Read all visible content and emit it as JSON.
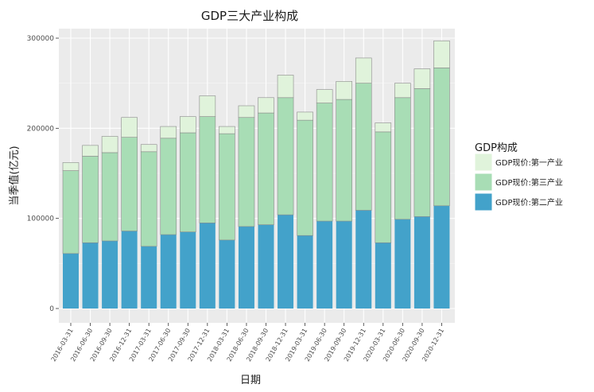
{
  "chart_data": {
    "type": "bar",
    "stacked": true,
    "title": "GDP三大产业构成",
    "xlabel": "日期",
    "ylabel": "当季值(亿元)",
    "ylim": [
      0,
      310000
    ],
    "yticks": [
      0,
      100000,
      200000,
      300000
    ],
    "ytick_labels": [
      "0",
      "100000",
      "200000",
      "300000"
    ],
    "grid": true,
    "legend": {
      "title": "GDP构成",
      "position": "right"
    },
    "categories": [
      "2016-03-31",
      "2016-06-30",
      "2016-09-30",
      "2016-12-31",
      "2017-03-31",
      "2017-06-30",
      "2017-09-30",
      "2017-12-31",
      "2018-03-31",
      "2018-06-30",
      "2018-09-30",
      "2018-12-31",
      "2019-03-31",
      "2019-06-30",
      "2019-09-30",
      "2019-12-31",
      "2020-03-31",
      "2020-06-30",
      "2020-09-30",
      "2020-12-31"
    ],
    "series": [
      {
        "name": "GDP现价:第二产业",
        "color": "#43a2ca",
        "values": [
          61000,
          73000,
          75000,
          86000,
          69000,
          82000,
          85000,
          95000,
          76000,
          91000,
          93000,
          104000,
          81000,
          97000,
          97000,
          109000,
          73000,
          99000,
          102000,
          114000
        ]
      },
      {
        "name": "GDP现价:第三产业",
        "color": "#a8ddb5",
        "values": [
          92000,
          96000,
          98000,
          104000,
          105000,
          107000,
          110000,
          118000,
          118000,
          121000,
          124000,
          130000,
          128000,
          131000,
          135000,
          141000,
          123000,
          135000,
          142000,
          153000
        ]
      },
      {
        "name": "GDP现价:第一产业",
        "color": "#e0f3db",
        "values": [
          9000,
          12000,
          18000,
          22000,
          8000,
          13000,
          18000,
          23000,
          8000,
          13000,
          17000,
          25000,
          9000,
          15000,
          20000,
          28000,
          10000,
          16000,
          22000,
          30000
        ]
      }
    ]
  }
}
